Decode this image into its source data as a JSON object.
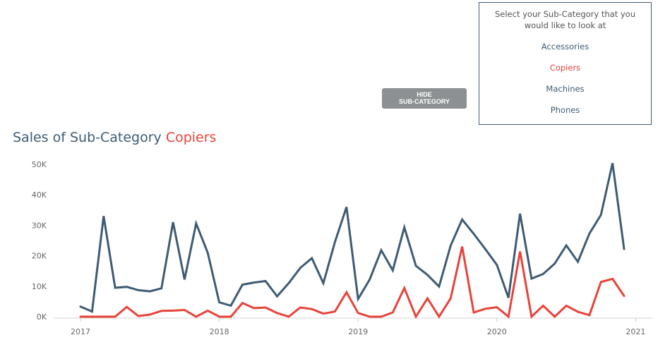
{
  "title": {
    "prefix": "Sales of Sub-Category",
    "highlight": "Copiers"
  },
  "button": {
    "line1": "HIDE",
    "line2": "SUB-CATEGORY"
  },
  "filter": {
    "prompt": "Select your Sub-Category that you would like to look at",
    "items": [
      "Accessories",
      "Copiers",
      "Machines",
      "Phones"
    ],
    "selected": "Copiers"
  },
  "colors": {
    "primary": "#3e5b73",
    "highlight": "#e8433a",
    "button": "#8c9092"
  },
  "chart_data": {
    "type": "line",
    "x_start": "2017-01",
    "x_labels": [
      "2017",
      "2018",
      "2019",
      "2020",
      "2021"
    ],
    "y_ticks": [
      "0K",
      "10K",
      "20K",
      "30K",
      "40K",
      "50K"
    ],
    "ylim": [
      0,
      50000
    ],
    "series": [
      {
        "name": "",
        "color": "#3e5b73",
        "values": [
          3300,
          1700,
          33000,
          9500,
          9800,
          8700,
          8300,
          9300,
          31000,
          12200,
          30600,
          21000,
          4700,
          3600,
          10500,
          11200,
          11700,
          6700,
          11000,
          16000,
          19200,
          11000,
          24500,
          36000,
          5800,
          12200,
          21800,
          15200,
          29300,
          16700,
          13700,
          9900,
          23300,
          31900,
          27200,
          22200,
          17000,
          6200,
          33800,
          12500,
          14000,
          17400,
          23400,
          18000,
          27300,
          33400,
          50400,
          22200
        ]
      },
      {
        "name": "",
        "color": "#e8433a",
        "values": [
          0,
          0,
          0,
          0,
          3200,
          200,
          700,
          1900,
          2000,
          2200,
          0,
          2000,
          0,
          0,
          4500,
          2800,
          3000,
          1200,
          0,
          3000,
          2500,
          1000,
          1700,
          8000,
          1200,
          0,
          0,
          1400,
          9400,
          0,
          6000,
          0,
          6000,
          23000,
          1400,
          2600,
          3100,
          0,
          21400,
          0,
          3600,
          0,
          3600,
          1600,
          500,
          11400,
          12400,
          6800
        ]
      }
    ]
  }
}
